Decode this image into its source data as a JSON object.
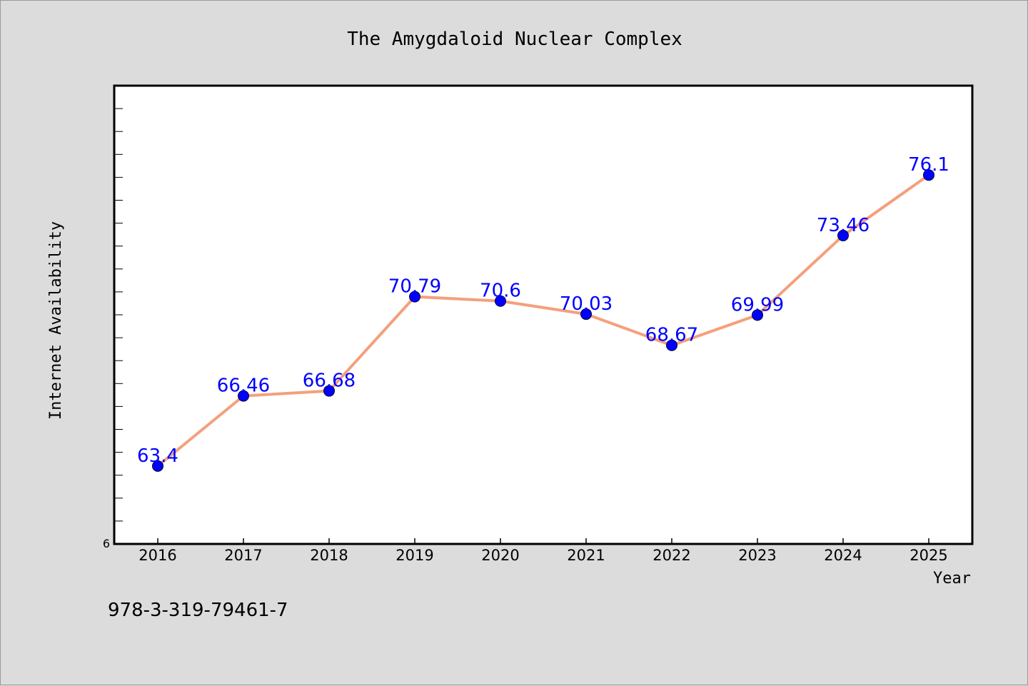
{
  "isbn": "978-3-319-79461-7",
  "colors": {
    "background": "#dcdcdc",
    "plot_background": "#ffffff",
    "line": "#f4a07c",
    "marker": "#0000ff",
    "data_label": "#0000ff"
  },
  "chart_data": {
    "type": "line",
    "title": "The Amygdaloid Nuclear Complex",
    "xlabel": "Year",
    "ylabel": "Internet Availability",
    "categories": [
      "2016",
      "2017",
      "2018",
      "2019",
      "2020",
      "2021",
      "2022",
      "2023",
      "2024",
      "2025"
    ],
    "series": [
      {
        "values": [
          63.4,
          66.46,
          66.68,
          70.79,
          70.6,
          70.03,
          68.67,
          69.99,
          73.46,
          76.1
        ]
      }
    ],
    "data_labels": [
      "63.4",
      "66.46",
      "66.68",
      "70.79",
      "70.6",
      "70.03",
      "68.67",
      "69.99",
      "73.46",
      "76.1"
    ],
    "y_tick_label": "6",
    "ylim": [
      60,
      80
    ],
    "grid": false,
    "legend": "none"
  }
}
